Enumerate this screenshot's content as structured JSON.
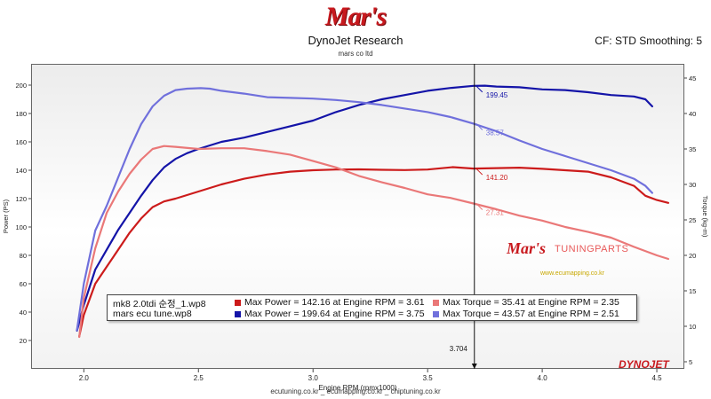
{
  "header": {
    "logo_text": "Mar's",
    "company": "DynoJet Research",
    "subtitle": "mars co ltd",
    "cf_text": "CF: STD Smoothing: 5"
  },
  "footer": {
    "text": "ecutuning.co.kr _ ecumapping.co.kr _ chiptuning.co.kr"
  },
  "watermark": {
    "logo": "Mar's",
    "text": "TUNINGPARTS",
    "url": "www.ecumapping.co.kr"
  },
  "brand": "DYNOJET",
  "legend": {
    "rows": [
      {
        "file": "mk8 2.0tdi 순정_1.wp8",
        "power": "Max Power = 142.16 at Engine RPM = 3.61",
        "torque": "Max Torque = 35.41 at Engine RPM = 2.35",
        "power_color": "#cc1b1b",
        "torque_color": "#ea7878"
      },
      {
        "file": "mars ecu tune.wp8",
        "power": "Max Power = 199.64 at Engine RPM = 3.75",
        "torque": "Max Torque = 43.57 at Engine RPM = 2.51",
        "power_color": "#1414a8",
        "torque_color": "#7070dc"
      }
    ]
  },
  "chart_data": {
    "type": "line",
    "xlabel": "Engine RPM (rpmx1000)",
    "ylabel": "Power (PS)",
    "y2label": "Torque (kg-m)",
    "xlim": [
      1.77,
      4.62
    ],
    "ylim": [
      0,
      215
    ],
    "y2lim": [
      4,
      47
    ],
    "x_ticks": [
      2.0,
      2.5,
      3.0,
      3.5,
      4.0,
      4.5
    ],
    "x_tick_labels": [
      "2.0",
      "2.5",
      "3.0",
      "3.5",
      "4.0",
      "4.5"
    ],
    "y_ticks": [
      20,
      40,
      60,
      80,
      100,
      120,
      140,
      160,
      180,
      200
    ],
    "y_tick_labels": [
      "20",
      "40",
      "60",
      "80",
      "100",
      "120",
      "140",
      "160",
      "180",
      "200"
    ],
    "y2_ticks": [
      5,
      10,
      15,
      20,
      25,
      30,
      35,
      40,
      45
    ],
    "y2_tick_labels": [
      "5",
      "10",
      "15",
      "20",
      "25",
      "30",
      "35",
      "40",
      "45"
    ],
    "grid": false,
    "cursor": {
      "x": 3.704,
      "label": "3.704"
    },
    "cursor_values": [
      {
        "value": 199.45,
        "label": "199.45",
        "axis": "left",
        "color": "#1414a8"
      },
      {
        "value": 38.57,
        "label": "38.57",
        "axis": "right",
        "color": "#7070dc"
      },
      {
        "value": 141.2,
        "label": "141.20",
        "axis": "left",
        "color": "#cc1b1b"
      },
      {
        "value": 27.31,
        "label": "27.31",
        "axis": "right",
        "color": "#ea7878"
      }
    ],
    "series": [
      {
        "name": "mars ecu tune.wp8 - Power",
        "axis": "left",
        "color": "#1414a8",
        "x": [
          1.97,
          2.0,
          2.05,
          2.1,
          2.15,
          2.2,
          2.25,
          2.3,
          2.35,
          2.4,
          2.45,
          2.5,
          2.6,
          2.7,
          2.8,
          2.9,
          3.0,
          3.1,
          3.2,
          3.3,
          3.4,
          3.5,
          3.6,
          3.7,
          3.75,
          3.8,
          3.9,
          4.0,
          4.1,
          4.2,
          4.3,
          4.4,
          4.45,
          4.48
        ],
        "y": [
          27,
          45,
          70,
          84,
          98,
          110,
          122,
          133,
          142,
          148,
          152,
          155,
          160,
          163,
          167,
          171,
          175,
          181,
          186,
          190,
          193,
          196,
          198,
          199.5,
          199.6,
          199,
          198.5,
          197,
          196.5,
          195,
          193,
          192,
          190,
          185
        ]
      },
      {
        "name": "mars ecu tune.wp8 - Torque",
        "axis": "right",
        "color": "#7070dc",
        "x": [
          1.97,
          2.0,
          2.05,
          2.1,
          2.15,
          2.2,
          2.25,
          2.3,
          2.35,
          2.4,
          2.45,
          2.51,
          2.55,
          2.6,
          2.7,
          2.8,
          2.9,
          3.0,
          3.1,
          3.2,
          3.3,
          3.4,
          3.5,
          3.6,
          3.7,
          3.8,
          3.9,
          4.0,
          4.1,
          4.2,
          4.3,
          4.4,
          4.45,
          4.48
        ],
        "y": [
          9.5,
          16,
          23.5,
          27,
          31,
          35,
          38.5,
          41,
          42.5,
          43.3,
          43.5,
          43.57,
          43.5,
          43.2,
          42.8,
          42.3,
          42.2,
          42.1,
          41.9,
          41.6,
          41.2,
          40.7,
          40.2,
          39.5,
          38.57,
          37.5,
          36.2,
          35,
          34,
          33,
          32,
          30.8,
          29.8,
          28.8
        ]
      },
      {
        "name": "mk8 2.0tdi 순정_1.wp8 - Power",
        "axis": "left",
        "color": "#cc1b1b",
        "x": [
          1.98,
          2.0,
          2.05,
          2.1,
          2.15,
          2.2,
          2.25,
          2.3,
          2.35,
          2.4,
          2.5,
          2.6,
          2.7,
          2.8,
          2.9,
          3.0,
          3.1,
          3.2,
          3.3,
          3.4,
          3.5,
          3.61,
          3.7,
          3.8,
          3.9,
          4.0,
          4.1,
          4.2,
          4.3,
          4.4,
          4.45,
          4.5,
          4.55
        ],
        "y": [
          23,
          38,
          60,
          72,
          84,
          96,
          106,
          114,
          118,
          120,
          125,
          130,
          134,
          137,
          139,
          140,
          140.5,
          140.6,
          140.3,
          140.1,
          140.5,
          142.16,
          141.2,
          141.5,
          141.8,
          141,
          140,
          139,
          135,
          129,
          122,
          119,
          117
        ]
      },
      {
        "name": "mk8 2.0tdi 순정_1.wp8 - Torque",
        "axis": "right",
        "color": "#ea7878",
        "x": [
          1.98,
          2.0,
          2.05,
          2.1,
          2.15,
          2.2,
          2.25,
          2.3,
          2.35,
          2.4,
          2.5,
          2.6,
          2.7,
          2.8,
          2.9,
          3.0,
          3.1,
          3.2,
          3.3,
          3.4,
          3.5,
          3.6,
          3.7,
          3.8,
          3.9,
          4.0,
          4.1,
          4.2,
          4.3,
          4.4,
          4.5,
          4.55
        ],
        "y": [
          8.5,
          14,
          21,
          26,
          29,
          31.5,
          33.5,
          35,
          35.41,
          35.3,
          35,
          35.1,
          35.1,
          34.7,
          34.2,
          33.3,
          32.4,
          31.2,
          30.3,
          29.5,
          28.6,
          28.1,
          27.31,
          26.5,
          25.6,
          24.9,
          24,
          23.3,
          22.5,
          21.2,
          20,
          19.5
        ]
      }
    ]
  }
}
